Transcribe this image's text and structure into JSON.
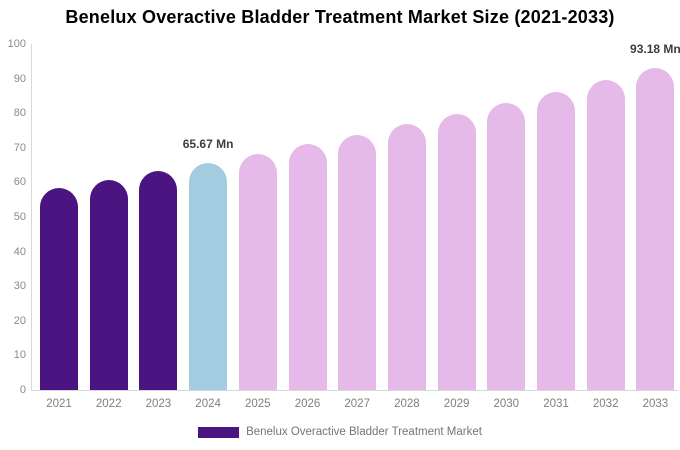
{
  "title": "Benelux Overactive Bladder Treatment Market Size (2021-2033)",
  "chart_data": {
    "type": "bar",
    "categories": [
      "2021",
      "2022",
      "2023",
      "2024",
      "2025",
      "2026",
      "2027",
      "2028",
      "2029",
      "2030",
      "2031",
      "2032",
      "2033"
    ],
    "values": [
      58.45,
      60.77,
      63.18,
      65.67,
      68.28,
      70.99,
      73.81,
      76.74,
      79.78,
      82.95,
      86.24,
      89.66,
      93.18
    ],
    "unit": "Mn",
    "title": "Benelux Overactive Bladder Treatment Market Size (2021-2033)",
    "xlabel": "",
    "ylabel": "",
    "ylim": [
      0,
      100
    ],
    "ytick_step": 10,
    "grid": false,
    "legend_position": "bottom",
    "colors": {
      "historical": "#4A1481",
      "current": "#A4CCE0",
      "forecast": "#E5B9E8"
    },
    "color_roles": [
      "historical",
      "historical",
      "historical",
      "current",
      "forecast",
      "forecast",
      "forecast",
      "forecast",
      "forecast",
      "forecast",
      "forecast",
      "forecast",
      "forecast"
    ],
    "annotations": [
      {
        "category": "2024",
        "text": "65.67 Mn"
      },
      {
        "category": "2033",
        "text": "93.18 Mn"
      }
    ],
    "legend": [
      {
        "label": "Benelux Overactive Bladder Treatment Market",
        "color": "#4A1481"
      }
    ]
  }
}
